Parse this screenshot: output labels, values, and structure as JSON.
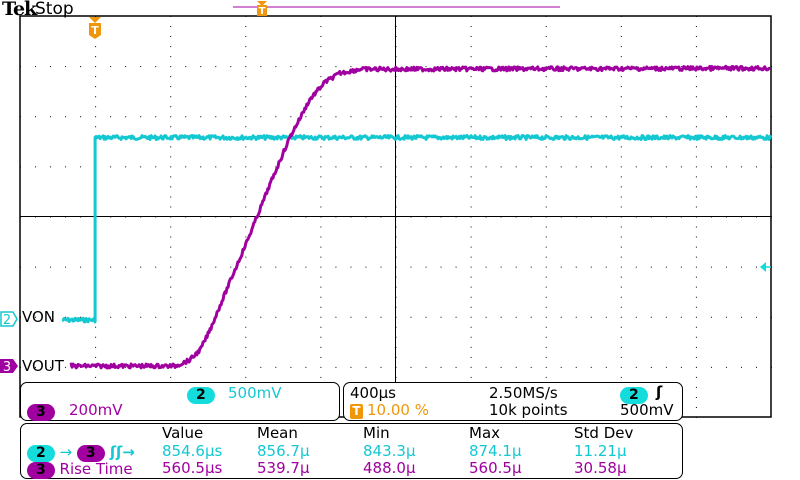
{
  "header": {
    "brand": "Tek",
    "status": "Stop"
  },
  "channels": {
    "ch2": {
      "number": "2",
      "label": "VON",
      "scale": "500mV",
      "color": "#14c8d2"
    },
    "ch3": {
      "number": "3",
      "label": "VOUT",
      "scale": "200mV",
      "color": "#a000a0"
    }
  },
  "timebase": {
    "time_per_div": "400µs",
    "trigger_position": "10.00 %",
    "sample_rate": "2.50MS/s",
    "record_length": "10k points",
    "trigger_source": "2",
    "trigger_slope_icon": "rising-edge-icon",
    "trigger_level": "500mV"
  },
  "measurements": {
    "headers": [
      "Value",
      "Mean",
      "Min",
      "Max",
      "Std Dev"
    ],
    "rows": [
      {
        "label": "Delay",
        "source": "2",
        "target": "3",
        "values": [
          "854.6µs",
          "856.7µ",
          "843.3µ",
          "874.1µ",
          "11.21µ"
        ]
      },
      {
        "label": "Rise Time",
        "source": "3",
        "values": [
          "560.5µs",
          "539.7µ",
          "488.0µ",
          "560.5µ",
          "30.58µ"
        ]
      }
    ]
  },
  "colors": {
    "trigger": "#f0960a",
    "grid": "#000000"
  },
  "chart_data": {
    "type": "line",
    "xlabel": "",
    "ylabel": "",
    "x_units": "µs",
    "xlim": [
      -400,
      3600
    ],
    "grid": true,
    "divisions": {
      "horizontal": 10,
      "vertical": 8
    },
    "series": [
      {
        "name": "VON",
        "channel": "2",
        "units": "V",
        "volts_per_div": 0.5,
        "x": [
          -176,
          0,
          0,
          3596
        ],
        "y": [
          0,
          0,
          1.82,
          1.82
        ]
      },
      {
        "name": "VOUT",
        "channel": "3",
        "units": "V",
        "volts_per_div": 0.2,
        "x": [
          -133,
          426,
          505,
          559,
          612,
          718,
          824,
          931,
          1037,
          1144,
          1223,
          1303,
          1410,
          3596
        ],
        "y": [
          0,
          0,
          0.024,
          0.064,
          0.144,
          0.336,
          0.524,
          0.724,
          0.912,
          1.064,
          1.132,
          1.168,
          1.184,
          1.188
        ]
      }
    ]
  }
}
